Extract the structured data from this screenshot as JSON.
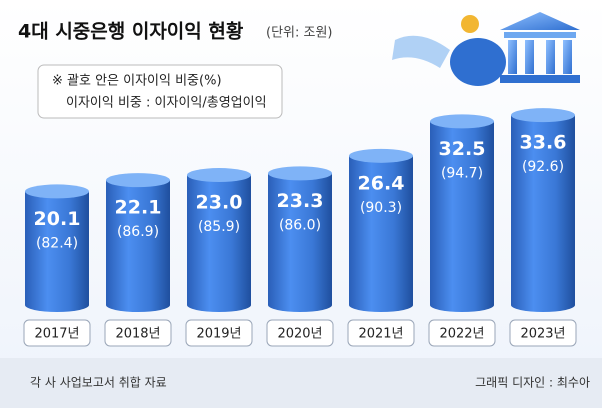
{
  "chart_data": {
    "type": "bar",
    "title": "4대 시중은행 이자이익 현황",
    "subtitle": "(단위: 조원)",
    "notes": [
      "※ 괄호 안은 이자이익 비중(%)",
      "이자이익 비중 : 이자이익/총영업이익"
    ],
    "categories": [
      "2017년",
      "2018년",
      "2019년",
      "2020년",
      "2021년",
      "2022년",
      "2023년"
    ],
    "values": [
      20.1,
      22.1,
      23.0,
      23.3,
      26.4,
      32.5,
      33.6
    ],
    "value_labels": [
      "20.1",
      "22.1",
      "23.0",
      "23.3",
      "26.4",
      "32.5",
      "33.6"
    ],
    "share_values": [
      82.4,
      86.9,
      85.9,
      86.0,
      90.3,
      94.7,
      92.6
    ],
    "share_labels": [
      "(82.4)",
      "(86.9)",
      "(85.9)",
      "(86.0)",
      "(90.3)",
      "(94.7)",
      "(92.6)"
    ],
    "color": "#3a78d6",
    "source": "각 사 사업보고서 취합 자료",
    "credit": "그래픽 디자인 : 최수아"
  }
}
